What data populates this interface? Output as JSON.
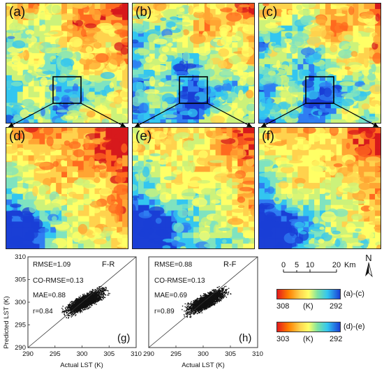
{
  "panels_top": [
    {
      "label": "(a)",
      "accent": "warm"
    },
    {
      "label": "(b)",
      "accent": "cool"
    },
    {
      "label": "(c)",
      "accent": "mixed"
    }
  ],
  "panels_zoom": [
    {
      "label": "(d)"
    },
    {
      "label": "(e)"
    },
    {
      "label": "(f)"
    }
  ],
  "scatter_g": {
    "label": "(g)",
    "method": "F-R",
    "stats": [
      "RMSE=1.09",
      "CO-RMSE=0.13",
      "MAE=0.88",
      "r=0.84"
    ],
    "xlabel": "Actual LST (K)",
    "ylabel": "Predicted LST (K)",
    "xticks": [
      "290",
      "295",
      "300",
      "305",
      "310"
    ],
    "yticks": [
      "290",
      "295",
      "300",
      "305",
      "310"
    ]
  },
  "scatter_h": {
    "label": "(h)",
    "method": "R-F",
    "stats": [
      "RMSE=0.88",
      "CO-RMSE=0.13",
      "MAE=0.69",
      "r=0.89"
    ],
    "xlabel": "Actual LST (K)",
    "xticks": [
      "290",
      "295",
      "300",
      "305",
      "310"
    ]
  },
  "north": "N",
  "scalebar": {
    "ticks": [
      "0",
      "5",
      "10",
      "20"
    ],
    "unit": "Km"
  },
  "colorbar_1": {
    "min": "308",
    "unit": "(K)",
    "max": "292",
    "panels": "(a)-(c)"
  },
  "colorbar_2": {
    "min": "303",
    "unit": "(K)",
    "max": "292",
    "panels": "(d)-(e)"
  },
  "colors": {
    "hot": "#d7191c",
    "warm": "#fdae61",
    "mid": "#ffff66",
    "cool": "#66ccff",
    "cold": "#1a3fd6"
  },
  "chart_data": [
    {
      "type": "scatter",
      "title": "(g)",
      "series": [
        {
          "name": "F-R"
        }
      ],
      "xlabel": "Actual LST (K)",
      "ylabel": "Predicted LST (K)",
      "xlim": [
        290,
        310
      ],
      "ylim": [
        290,
        310
      ],
      "cloud": {
        "x_center": 300.5,
        "y_center": 300.2,
        "x_range": [
          295,
          306
        ],
        "y_range": [
          296,
          305
        ]
      }
    },
    {
      "type": "scatter",
      "title": "(h)",
      "series": [
        {
          "name": "R-F"
        }
      ],
      "xlabel": "Actual LST (K)",
      "xlim": [
        290,
        310
      ],
      "ylim": [
        290,
        310
      ],
      "cloud": {
        "x_center": 300.5,
        "y_center": 300.3,
        "x_range": [
          295,
          306
        ],
        "y_range": [
          295,
          306
        ]
      }
    }
  ]
}
